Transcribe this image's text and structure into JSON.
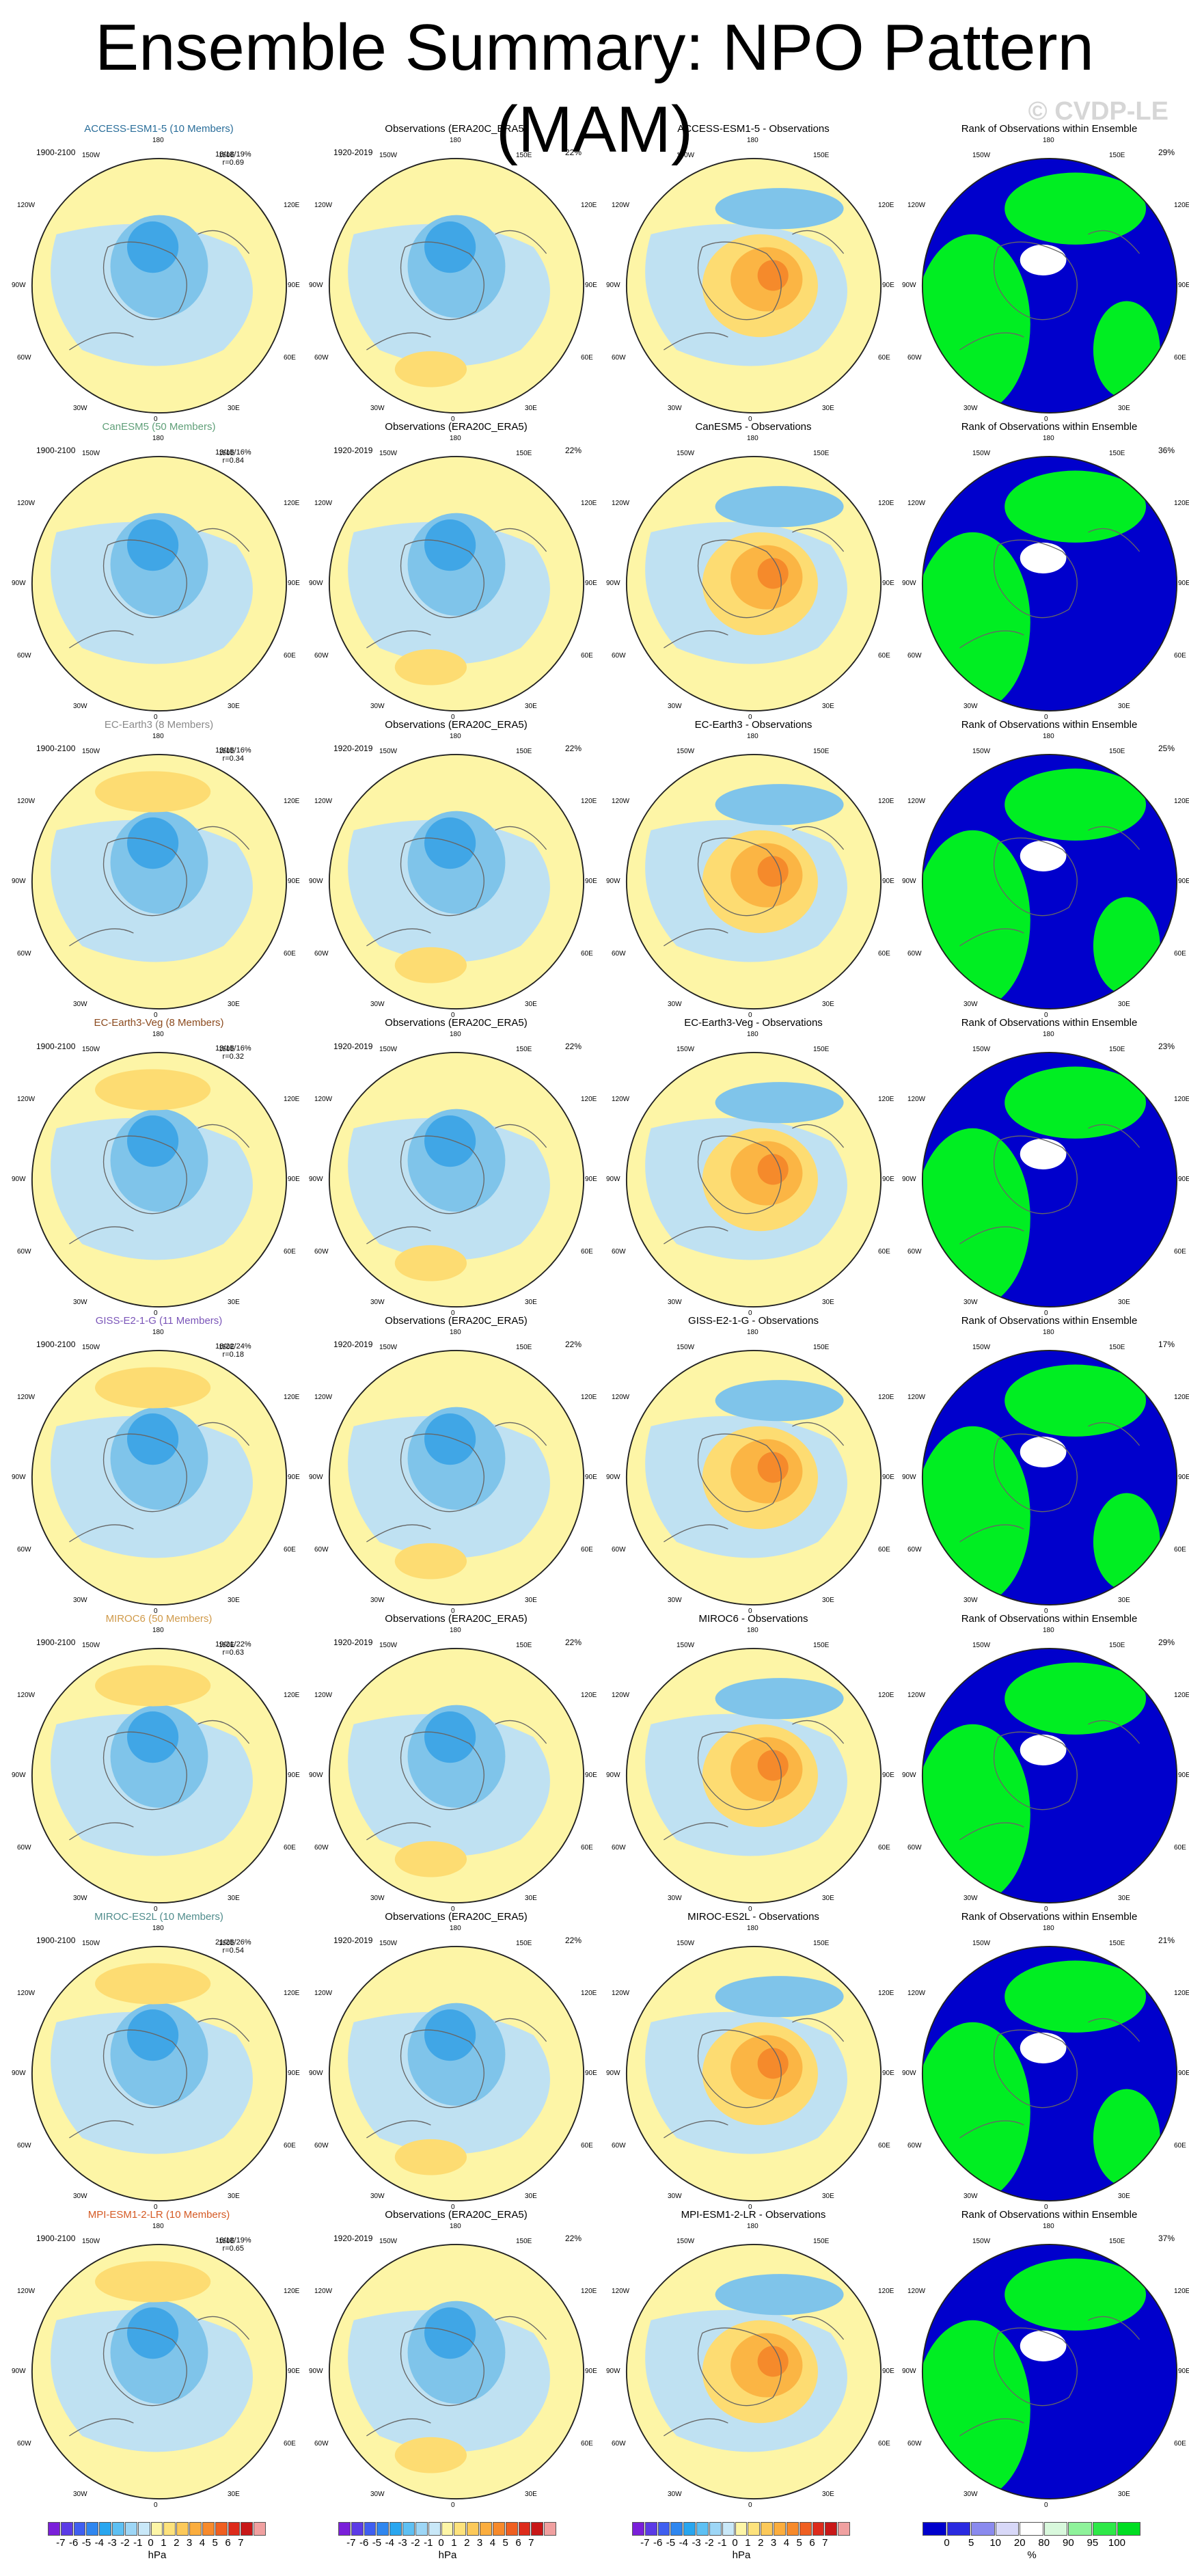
{
  "title": "Ensemble Summary: NPO Pattern (MAM)",
  "watermark": "© CVDP-LE",
  "obs_title": "Observations (ERA20C_ERA5)",
  "obs_period": "1920-2019",
  "obs_pct": "22%",
  "rank_title": "Rank of Observations within Ensemble",
  "model_period": "1900-2100",
  "colors": {
    "ocean_yellow": "#fdf5a6",
    "light_blue": "#bfe1f2",
    "mid_blue": "#7fc4ea",
    "blue": "#40a6e6",
    "deep_blue": "#1a85e0",
    "light_orange": "#fddc72",
    "orange": "#fbb544",
    "dark_orange": "#f58a2b",
    "red": "#e84a1b",
    "rank_blue": "#0000cc",
    "rank_green": "#00ee22",
    "rank_light_green": "#b8f7c0"
  },
  "rows": [
    {
      "model": "ACCESS-ESM1-5 (10 Members)",
      "color": "#2a6e9a",
      "stats": [
        "18/18/19%",
        "r=0.69"
      ],
      "diff_title": "ACCESS-ESM1-5 - Observations",
      "rank_pct": "29%"
    },
    {
      "model": "CanESM5 (50 Members)",
      "color": "#5f9f78",
      "stats": [
        "13/15/16%",
        "r=0.84"
      ],
      "diff_title": "CanESM5 - Observations",
      "rank_pct": "36%"
    },
    {
      "model": "EC-Earth3 (8 Members)",
      "color": "#8a8a8a",
      "stats": [
        "13/15/16%",
        "r=0.34"
      ],
      "diff_title": "EC-Earth3 - Observations",
      "rank_pct": "25%"
    },
    {
      "model": "EC-Earth3-Veg (8 Members)",
      "color": "#8b4a1e",
      "stats": [
        "13/15/16%",
        "r=0.32"
      ],
      "diff_title": "EC-Earth3-Veg - Observations",
      "rank_pct": "23%"
    },
    {
      "model": "GISS-E2-1-G (11 Members)",
      "color": "#7a55b8",
      "stats": [
        "18/22/24%",
        "r=0.18"
      ],
      "diff_title": "GISS-E2-1-G - Observations",
      "rank_pct": "17%"
    },
    {
      "model": "MIROC6 (50 Members)",
      "color": "#d09a4a",
      "stats": [
        "19/21/22%",
        "r=0.63"
      ],
      "diff_title": "MIROC6 - Observations",
      "rank_pct": "29%"
    },
    {
      "model": "MIROC-ES2L (10 Members)",
      "color": "#4f8c8c",
      "stats": [
        "21/25/26%",
        "r=0.54"
      ],
      "diff_title": "MIROC-ES2L - Observations",
      "rank_pct": "21%"
    },
    {
      "model": "MPI-ESM1-2-LR (10 Members)",
      "color": "#d55a24",
      "stats": [
        "16/18/19%",
        "r=0.65"
      ],
      "diff_title": "MPI-ESM1-2-LR - Observations",
      "rank_pct": "37%"
    }
  ],
  "map_labels": {
    "top": "180",
    "bottom": "0",
    "l1": "150W",
    "r1": "150E",
    "l2": "120W",
    "r2": "120E",
    "l3": "90W",
    "r3": "90E",
    "l4": "60W",
    "r4": "60E",
    "l5": "30W",
    "r5": "30E"
  },
  "colorbar_hpa": {
    "ticks": [
      "-7",
      "-6",
      "-5",
      "-4",
      "-3",
      "-2",
      "-1",
      "0",
      "1",
      "2",
      "3",
      "4",
      "5",
      "6",
      "7"
    ],
    "unit": "hPa",
    "colors": [
      "#7a1fd9",
      "#5b3be6",
      "#3f5ff0",
      "#2f86ef",
      "#29a6ef",
      "#5ec0f3",
      "#9dd6f6",
      "#c9e8f8",
      "#fdf5a6",
      "#fde27c",
      "#fcc95a",
      "#fbad3e",
      "#f78a2b",
      "#ef5f21",
      "#dd2b1b",
      "#c81818",
      "#f0a0a0"
    ]
  },
  "colorbar_rank": {
    "ticks": [
      "0",
      "5",
      "10",
      "20",
      "80",
      "90",
      "95",
      "100"
    ],
    "unit": "%",
    "colors": [
      "#0000cc",
      "#2a2ae0",
      "#8a8aee",
      "#d8d8f8",
      "#ffffff",
      "#d8f8dc",
      "#8ef29a",
      "#2ee848",
      "#00dd22"
    ]
  }
}
